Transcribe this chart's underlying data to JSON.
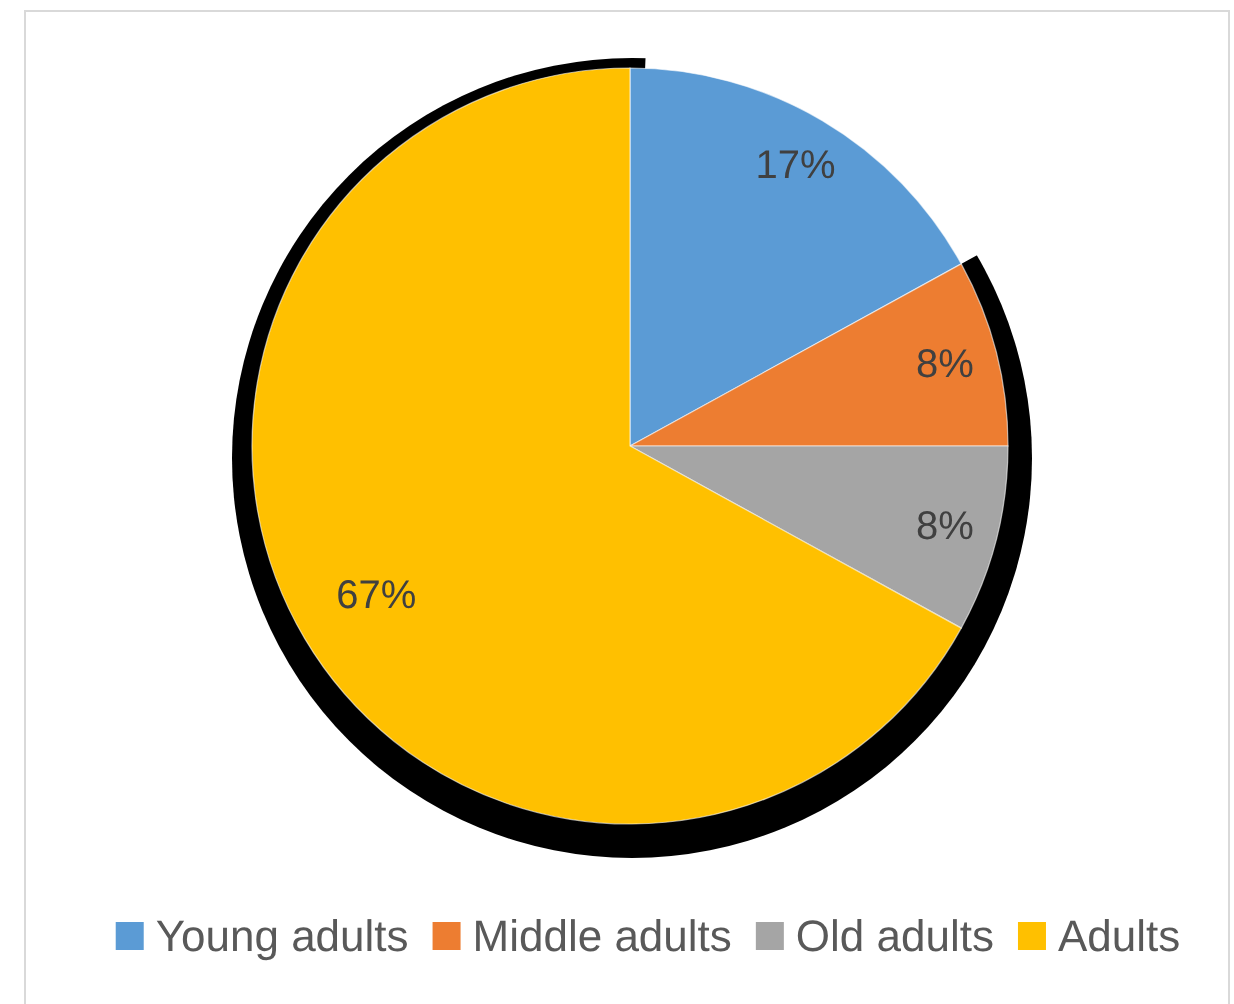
{
  "chart_data": {
    "type": "pie",
    "categories": [
      "Young adults",
      "Middle adults",
      "Old adults",
      "Adults"
    ],
    "values": [
      17,
      8,
      8,
      67
    ],
    "colors": [
      "#5b9bd5",
      "#ed7d31",
      "#a5a5a5",
      "#ffc000"
    ],
    "value_labels": [
      "17%",
      "8%",
      "8%",
      "67%"
    ],
    "legend": "bottom"
  }
}
